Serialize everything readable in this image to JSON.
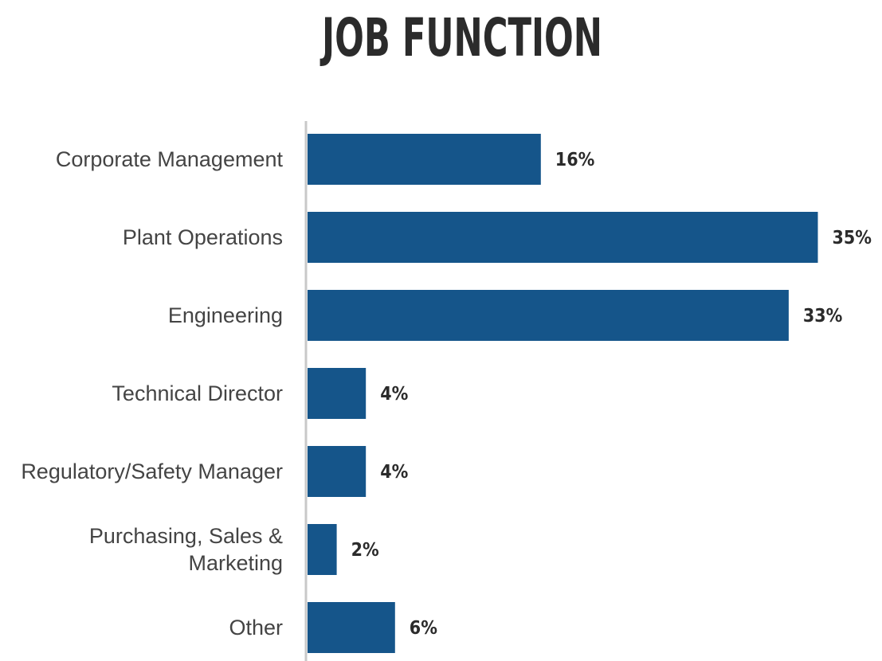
{
  "chart_data": {
    "type": "bar",
    "orientation": "horizontal",
    "title": "JOB FUNCTION",
    "categories": [
      "Corporate Management",
      "Plant Operations",
      "Engineering",
      "Technical Director",
      "Regulatory/Safety Manager",
      "Purchasing, Sales & Marketing",
      "Other"
    ],
    "category_lines": [
      [
        "Corporate Management"
      ],
      [
        "Plant Operations"
      ],
      [
        "Engineering"
      ],
      [
        "Technical Director"
      ],
      [
        "Regulatory/Safety Manager"
      ],
      [
        "Purchasing, Sales &",
        "Marketing"
      ],
      [
        "Other"
      ]
    ],
    "values": [
      16,
      35,
      33,
      4,
      4,
      2,
      6
    ],
    "value_labels": [
      "16%",
      "35%",
      "33%",
      "4%",
      "4%",
      "2%",
      "6%"
    ],
    "unit": "%",
    "xlim": [
      0,
      35
    ],
    "grid": false,
    "legend": "none",
    "bar_color": "#15558a",
    "axis_color": "#c8c8c8"
  }
}
